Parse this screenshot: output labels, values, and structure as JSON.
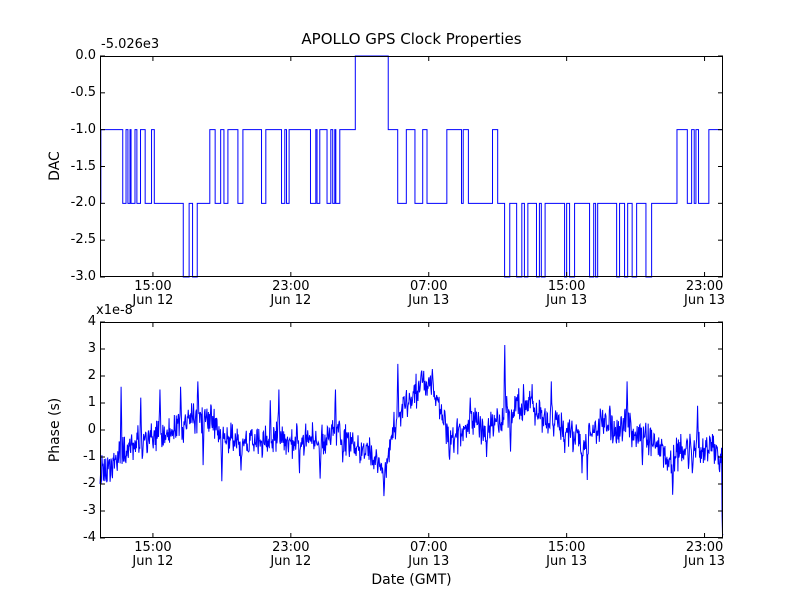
{
  "figure": {
    "title": "APOLLO GPS Clock Properties",
    "background": "#ffffff",
    "line_color": "#0000ff",
    "frame_color": "#000000"
  },
  "x_axis": {
    "label": "Date (GMT)",
    "range_hours_from_jun12_00": [
      11.93,
      48.07
    ],
    "ticks": [
      {
        "hour": 15,
        "time": "15:00",
        "date": "Jun 12"
      },
      {
        "hour": 23,
        "time": "23:00",
        "date": "Jun 12"
      },
      {
        "hour": 31,
        "time": "07:00",
        "date": "Jun 13"
      },
      {
        "hour": 39,
        "time": "15:00",
        "date": "Jun 13"
      },
      {
        "hour": 47,
        "time": "23:00",
        "date": "Jun 13"
      }
    ]
  },
  "chart_data": [
    {
      "type": "line",
      "subplot": "top",
      "title": "APOLLO GPS Clock Properties",
      "ylabel": "DAC",
      "offset_text": "-5.026e3",
      "ylim": [
        -3.0,
        0.0
      ],
      "ytick_labels": [
        "0.0",
        "-0.5",
        "-1.0",
        "-1.5",
        "-2.0",
        "-2.5",
        "-3.0"
      ],
      "ytick_values": [
        0,
        -0.5,
        -1,
        -1.5,
        -2,
        -2.5,
        -3
      ],
      "style": "steps",
      "steps": [
        [
          11.93,
          -2
        ],
        [
          11.98,
          -1
        ],
        [
          13.25,
          -2
        ],
        [
          13.44,
          -1
        ],
        [
          13.55,
          -2
        ],
        [
          13.67,
          -1
        ],
        [
          13.73,
          -2
        ],
        [
          13.96,
          -1
        ],
        [
          14.07,
          -2
        ],
        [
          14.28,
          -1
        ],
        [
          14.55,
          -2
        ],
        [
          14.92,
          -1
        ],
        [
          15.08,
          -2
        ],
        [
          16.76,
          -3
        ],
        [
          17.1,
          -2
        ],
        [
          17.3,
          -3
        ],
        [
          17.57,
          -2
        ],
        [
          18.3,
          -1
        ],
        [
          18.61,
          -2
        ],
        [
          18.93,
          -1
        ],
        [
          19.12,
          -2
        ],
        [
          19.35,
          -1
        ],
        [
          19.93,
          -2
        ],
        [
          20.22,
          -1
        ],
        [
          21.3,
          -2
        ],
        [
          21.55,
          -1
        ],
        [
          22.46,
          -2
        ],
        [
          22.65,
          -1
        ],
        [
          22.75,
          -2
        ],
        [
          22.9,
          -1
        ],
        [
          24.14,
          -2
        ],
        [
          24.45,
          -1
        ],
        [
          24.52,
          -2
        ],
        [
          24.68,
          -1
        ],
        [
          25.1,
          -2
        ],
        [
          25.32,
          -1
        ],
        [
          25.43,
          -2
        ],
        [
          25.55,
          -1
        ],
        [
          25.61,
          -2
        ],
        [
          25.84,
          -1
        ],
        [
          26.74,
          0
        ],
        [
          28.65,
          -1
        ],
        [
          29.2,
          -2
        ],
        [
          29.7,
          -1
        ],
        [
          30.2,
          -2
        ],
        [
          30.65,
          -1
        ],
        [
          30.9,
          -2
        ],
        [
          32.05,
          -1
        ],
        [
          32.9,
          -2
        ],
        [
          33.0,
          -1
        ],
        [
          33.3,
          -2
        ],
        [
          34.7,
          -1
        ],
        [
          35.0,
          -2
        ],
        [
          35.4,
          -3
        ],
        [
          35.7,
          -2
        ],
        [
          36.1,
          -3
        ],
        [
          36.4,
          -2
        ],
        [
          36.55,
          -3
        ],
        [
          36.75,
          -2
        ],
        [
          37.25,
          -3
        ],
        [
          37.42,
          -2
        ],
        [
          37.53,
          -3
        ],
        [
          37.75,
          -2
        ],
        [
          38.88,
          -3
        ],
        [
          39.0,
          -2
        ],
        [
          39.17,
          -3
        ],
        [
          39.46,
          -2
        ],
        [
          40.33,
          -3
        ],
        [
          40.57,
          -2
        ],
        [
          40.68,
          -3
        ],
        [
          40.8,
          -2
        ],
        [
          41.9,
          -3
        ],
        [
          42.07,
          -2
        ],
        [
          42.36,
          -3
        ],
        [
          42.54,
          -2
        ],
        [
          42.8,
          -3
        ],
        [
          43.06,
          -2
        ],
        [
          43.6,
          -3
        ],
        [
          43.93,
          -2
        ],
        [
          45.4,
          -1
        ],
        [
          46.0,
          -2
        ],
        [
          46.25,
          -1
        ],
        [
          46.4,
          -2
        ],
        [
          46.5,
          -1
        ],
        [
          46.65,
          -2
        ],
        [
          47.25,
          -1
        ],
        [
          48.07,
          -1
        ]
      ]
    },
    {
      "type": "line",
      "subplot": "bottom",
      "ylabel": "Phase (s)",
      "multiplier_text": "x1e-8",
      "ylim": [
        -4,
        4
      ],
      "ytick_labels": [
        "4",
        "3",
        "2",
        "1",
        "0",
        "-1",
        "-2",
        "-3",
        "-4"
      ],
      "ytick_values": [
        4,
        3,
        2,
        1,
        0,
        -1,
        -2,
        -3,
        -4
      ],
      "style": "noisy",
      "units": "1e-8 s",
      "anchors": [
        [
          11.93,
          -1.5
        ],
        [
          12.2,
          -1.7
        ],
        [
          12.6,
          -1.3
        ],
        [
          13.1,
          -0.9
        ],
        [
          13.7,
          -0.7
        ],
        [
          14.3,
          -0.5
        ],
        [
          14.8,
          -0.35
        ],
        [
          15.4,
          -0.2
        ],
        [
          16.0,
          -0.1
        ],
        [
          16.6,
          0.15
        ],
        [
          17.1,
          0.35
        ],
        [
          17.7,
          0.55
        ],
        [
          18.3,
          0.5
        ],
        [
          18.6,
          0.1
        ],
        [
          19.0,
          -0.3
        ],
        [
          19.5,
          -0.4
        ],
        [
          20.0,
          -0.55
        ],
        [
          20.6,
          -0.4
        ],
        [
          21.2,
          -0.5
        ],
        [
          21.8,
          -0.4
        ],
        [
          22.4,
          -0.25
        ],
        [
          22.9,
          -0.4
        ],
        [
          23.5,
          -0.45
        ],
        [
          24.1,
          -0.3
        ],
        [
          24.7,
          -0.45
        ],
        [
          25.3,
          -0.2
        ],
        [
          25.8,
          -0.05
        ],
        [
          26.4,
          -0.5
        ],
        [
          27.0,
          -0.8
        ],
        [
          27.6,
          -0.9
        ],
        [
          28.0,
          -1.1
        ],
        [
          28.45,
          -1.5
        ],
        [
          28.8,
          -0.5
        ],
        [
          29.1,
          0.4
        ],
        [
          29.5,
          0.8
        ],
        [
          29.9,
          1.0
        ],
        [
          30.3,
          1.4
        ],
        [
          30.7,
          1.7
        ],
        [
          31.1,
          1.8
        ],
        [
          31.5,
          1.1
        ],
        [
          31.9,
          0.2
        ],
        [
          32.2,
          -0.4
        ],
        [
          32.6,
          -0.25
        ],
        [
          33.0,
          0.1
        ],
        [
          33.4,
          0.45
        ],
        [
          33.9,
          0.3
        ],
        [
          34.2,
          -0.35
        ],
        [
          34.6,
          0.1
        ],
        [
          35.0,
          0.3
        ],
        [
          35.2,
          0.1
        ],
        [
          35.42,
          0.9
        ],
        [
          35.7,
          0.5
        ],
        [
          36.1,
          0.9
        ],
        [
          36.6,
          0.95
        ],
        [
          37.1,
          0.8
        ],
        [
          37.7,
          0.3
        ],
        [
          38.1,
          0.3
        ],
        [
          38.9,
          0.1
        ],
        [
          39.5,
          -0.3
        ],
        [
          39.9,
          -0.5
        ],
        [
          40.2,
          -0.4
        ],
        [
          40.9,
          0.2
        ],
        [
          41.5,
          0.3
        ],
        [
          42.0,
          0.0
        ],
        [
          42.5,
          0.1
        ],
        [
          43.0,
          -0.2
        ],
        [
          43.5,
          -0.2
        ],
        [
          44.1,
          -0.5
        ],
        [
          44.7,
          -0.9
        ],
        [
          45.1,
          -1.2
        ],
        [
          45.6,
          -0.8
        ],
        [
          46.1,
          -0.8
        ],
        [
          46.6,
          -0.6
        ],
        [
          47.1,
          -0.9
        ],
        [
          47.5,
          -0.55
        ],
        [
          47.8,
          -0.9
        ],
        [
          48.0,
          -1.0
        ],
        [
          48.05,
          -3.9
        ]
      ],
      "spikes": [
        [
          13.15,
          1.6
        ],
        [
          14.3,
          1.2
        ],
        [
          15.4,
          1.5
        ],
        [
          16.6,
          1.6
        ],
        [
          17.6,
          1.8
        ],
        [
          17.9,
          -1.3
        ],
        [
          19.0,
          -1.9
        ],
        [
          20.1,
          -1.5
        ],
        [
          21.8,
          1.1
        ],
        [
          22.3,
          1.5
        ],
        [
          23.5,
          -1.6
        ],
        [
          24.7,
          -1.8
        ],
        [
          25.6,
          1.5
        ],
        [
          26.0,
          -1.2
        ],
        [
          28.4,
          -2.45
        ],
        [
          29.2,
          2.45
        ],
        [
          30.6,
          2.2
        ],
        [
          31.2,
          2.26
        ],
        [
          32.2,
          -1.1
        ],
        [
          33.4,
          1.2
        ],
        [
          34.35,
          -1.0
        ],
        [
          35.42,
          3.15
        ],
        [
          35.75,
          -0.8
        ],
        [
          36.5,
          1.7
        ],
        [
          37.0,
          1.7
        ],
        [
          38.1,
          1.8
        ],
        [
          38.9,
          -0.85
        ],
        [
          39.9,
          -1.6
        ],
        [
          40.2,
          -1.85
        ],
        [
          41.5,
          0.9
        ],
        [
          42.5,
          1.8
        ],
        [
          43.4,
          -1.3
        ],
        [
          45.15,
          -2.4
        ],
        [
          46.3,
          -1.6
        ],
        [
          46.6,
          0.9
        ],
        [
          48.03,
          -3.9
        ]
      ],
      "noise_std": 0.3,
      "noise_seed": 42
    }
  ]
}
